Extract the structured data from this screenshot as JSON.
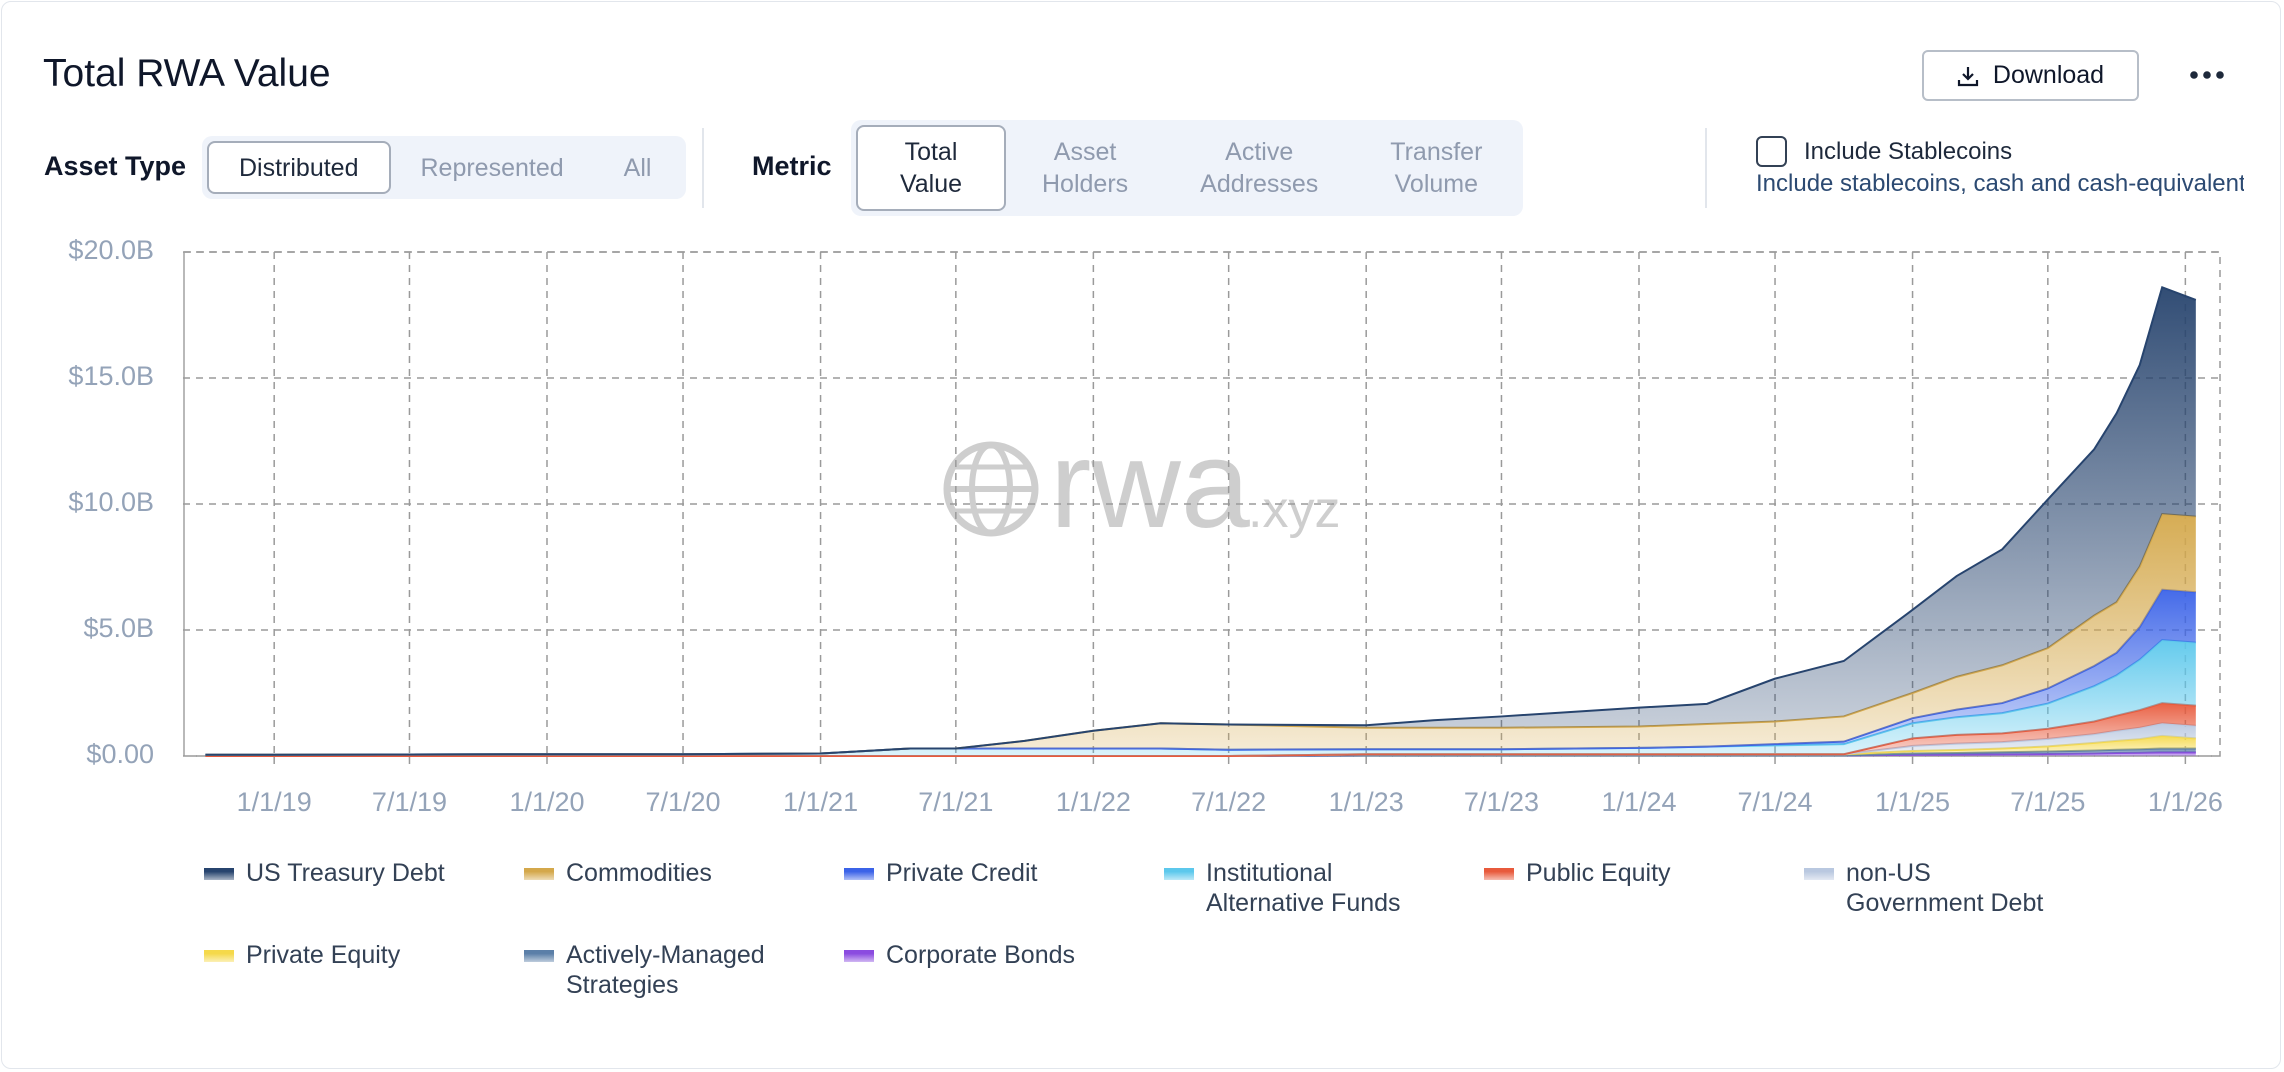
{
  "header": {
    "title": "Total RWA Value",
    "download": "Download"
  },
  "filters": {
    "asset_type": {
      "label": "Asset Type",
      "options": [
        "Distributed",
        "Represented",
        "All"
      ],
      "selected": 0
    },
    "metric": {
      "label": "Metric",
      "options": [
        "Total Value",
        "Asset Holders",
        "Active Addresses",
        "Transfer Volume"
      ],
      "selected": 0
    },
    "stablecoins": {
      "label": "Include Stablecoins",
      "description": "Include stablecoins, cash and cash-equivalents",
      "checked": false
    }
  },
  "watermark": {
    "main": "rwa",
    "suffix": ".xyz"
  },
  "chart_data": {
    "type": "stacked_area",
    "x": [
      "10/1/18",
      "1/1/19",
      "7/1/19",
      "1/1/20",
      "7/1/20",
      "1/1/21",
      "5/1/21",
      "7/1/21",
      "10/1/21",
      "1/1/22",
      "4/1/22",
      "7/1/22",
      "1/1/23",
      "4/1/23",
      "7/1/23",
      "1/1/24",
      "4/1/24",
      "7/1/24",
      "10/1/24",
      "1/1/25",
      "3/1/25",
      "5/1/25",
      "7/1/25",
      "9/1/25",
      "10/1/25",
      "11/1/25",
      "12/1/25",
      "1/15/26"
    ],
    "xlim": [
      "9/1/18",
      "2/15/26"
    ],
    "xticks": [
      "1/1/19",
      "7/1/19",
      "1/1/20",
      "7/1/20",
      "1/1/21",
      "7/1/21",
      "1/1/22",
      "7/1/22",
      "1/1/23",
      "7/1/23",
      "1/1/24",
      "7/1/24",
      "1/1/25",
      "7/1/25",
      "1/1/26"
    ],
    "ylim": [
      0,
      20
    ],
    "yticks": [
      {
        "value": 0,
        "label": "$0.00"
      },
      {
        "value": 5,
        "label": "$5.0B"
      },
      {
        "value": 10,
        "label": "$10.0B"
      },
      {
        "value": 15,
        "label": "$15.0B"
      },
      {
        "value": 20,
        "label": "$20.0B"
      }
    ],
    "grid": true,
    "series": [
      {
        "name": "US Treasury Debt",
        "color": "#27446e",
        "values": [
          0,
          0,
          0,
          0,
          0,
          0,
          0,
          0,
          0,
          0,
          0,
          0,
          0.1,
          0.3,
          0.45,
          0.75,
          0.8,
          1.7,
          2.2,
          3.3,
          4.0,
          4.6,
          5.9,
          6.6,
          7.5,
          8.0,
          9.0,
          8.6
        ]
      },
      {
        "name": "Commodities",
        "color": "#d4a84b",
        "values": [
          0,
          0,
          0,
          0,
          0,
          0,
          0,
          0,
          0.3,
          0.7,
          1.0,
          1.0,
          0.85,
          0.85,
          0.85,
          0.85,
          0.9,
          0.9,
          1.0,
          1.0,
          1.3,
          1.5,
          1.6,
          2.0,
          2.0,
          2.4,
          3.0,
          3.0
        ]
      },
      {
        "name": "Private Credit",
        "color": "#3b63e8",
        "values": [
          0,
          0,
          0,
          0,
          0,
          0,
          0,
          0,
          0,
          0,
          0,
          0,
          0,
          0,
          0,
          0,
          0,
          0.05,
          0.1,
          0.2,
          0.3,
          0.4,
          0.6,
          0.8,
          0.9,
          1.3,
          2.0,
          2.0
        ]
      },
      {
        "name": "Institutional Alternative Funds",
        "color": "#5cc8ec",
        "values": [
          0.05,
          0.05,
          0.06,
          0.07,
          0.07,
          0.1,
          0.3,
          0.3,
          0.3,
          0.3,
          0.3,
          0.25,
          0.2,
          0.2,
          0.2,
          0.25,
          0.3,
          0.35,
          0.4,
          0.6,
          0.7,
          0.8,
          1.0,
          1.4,
          1.6,
          2.0,
          2.5,
          2.5
        ]
      },
      {
        "name": "Public Equity",
        "color": "#e85a3c",
        "values": [
          0,
          0,
          0,
          0,
          0,
          0,
          0,
          0,
          0,
          0,
          0,
          0,
          0,
          0,
          0,
          0,
          0,
          0,
          0,
          0.3,
          0.35,
          0.35,
          0.4,
          0.5,
          0.6,
          0.7,
          0.8,
          0.8
        ]
      },
      {
        "name": "non-US Government Debt",
        "color": "#b9c8e0",
        "values": [
          0,
          0,
          0,
          0,
          0,
          0,
          0,
          0,
          0,
          0,
          0,
          0,
          0,
          0,
          0,
          0,
          0,
          0,
          0,
          0.2,
          0.25,
          0.25,
          0.3,
          0.35,
          0.4,
          0.45,
          0.5,
          0.5
        ]
      },
      {
        "name": "Private Equity",
        "color": "#f5d94a",
        "values": [
          0,
          0,
          0,
          0,
          0,
          0,
          0,
          0,
          0,
          0,
          0,
          0,
          0.05,
          0.05,
          0.05,
          0.05,
          0.05,
          0.05,
          0.05,
          0.1,
          0.12,
          0.15,
          0.2,
          0.3,
          0.35,
          0.4,
          0.5,
          0.4
        ]
      },
      {
        "name": "Actively-Managed Strategies",
        "color": "#5b7fa8",
        "values": [
          0,
          0,
          0,
          0,
          0,
          0,
          0,
          0,
          0,
          0,
          0,
          0,
          0,
          0,
          0,
          0,
          0,
          0,
          0,
          0.05,
          0.06,
          0.08,
          0.1,
          0.12,
          0.13,
          0.14,
          0.15,
          0.15
        ]
      },
      {
        "name": "Corporate Bonds",
        "color": "#8b4be0",
        "values": [
          0,
          0,
          0,
          0,
          0,
          0,
          0,
          0,
          0,
          0,
          0,
          0,
          0.02,
          0.02,
          0.02,
          0.02,
          0.02,
          0.02,
          0.02,
          0.05,
          0.06,
          0.07,
          0.08,
          0.1,
          0.12,
          0.13,
          0.15,
          0.15
        ]
      }
    ]
  }
}
